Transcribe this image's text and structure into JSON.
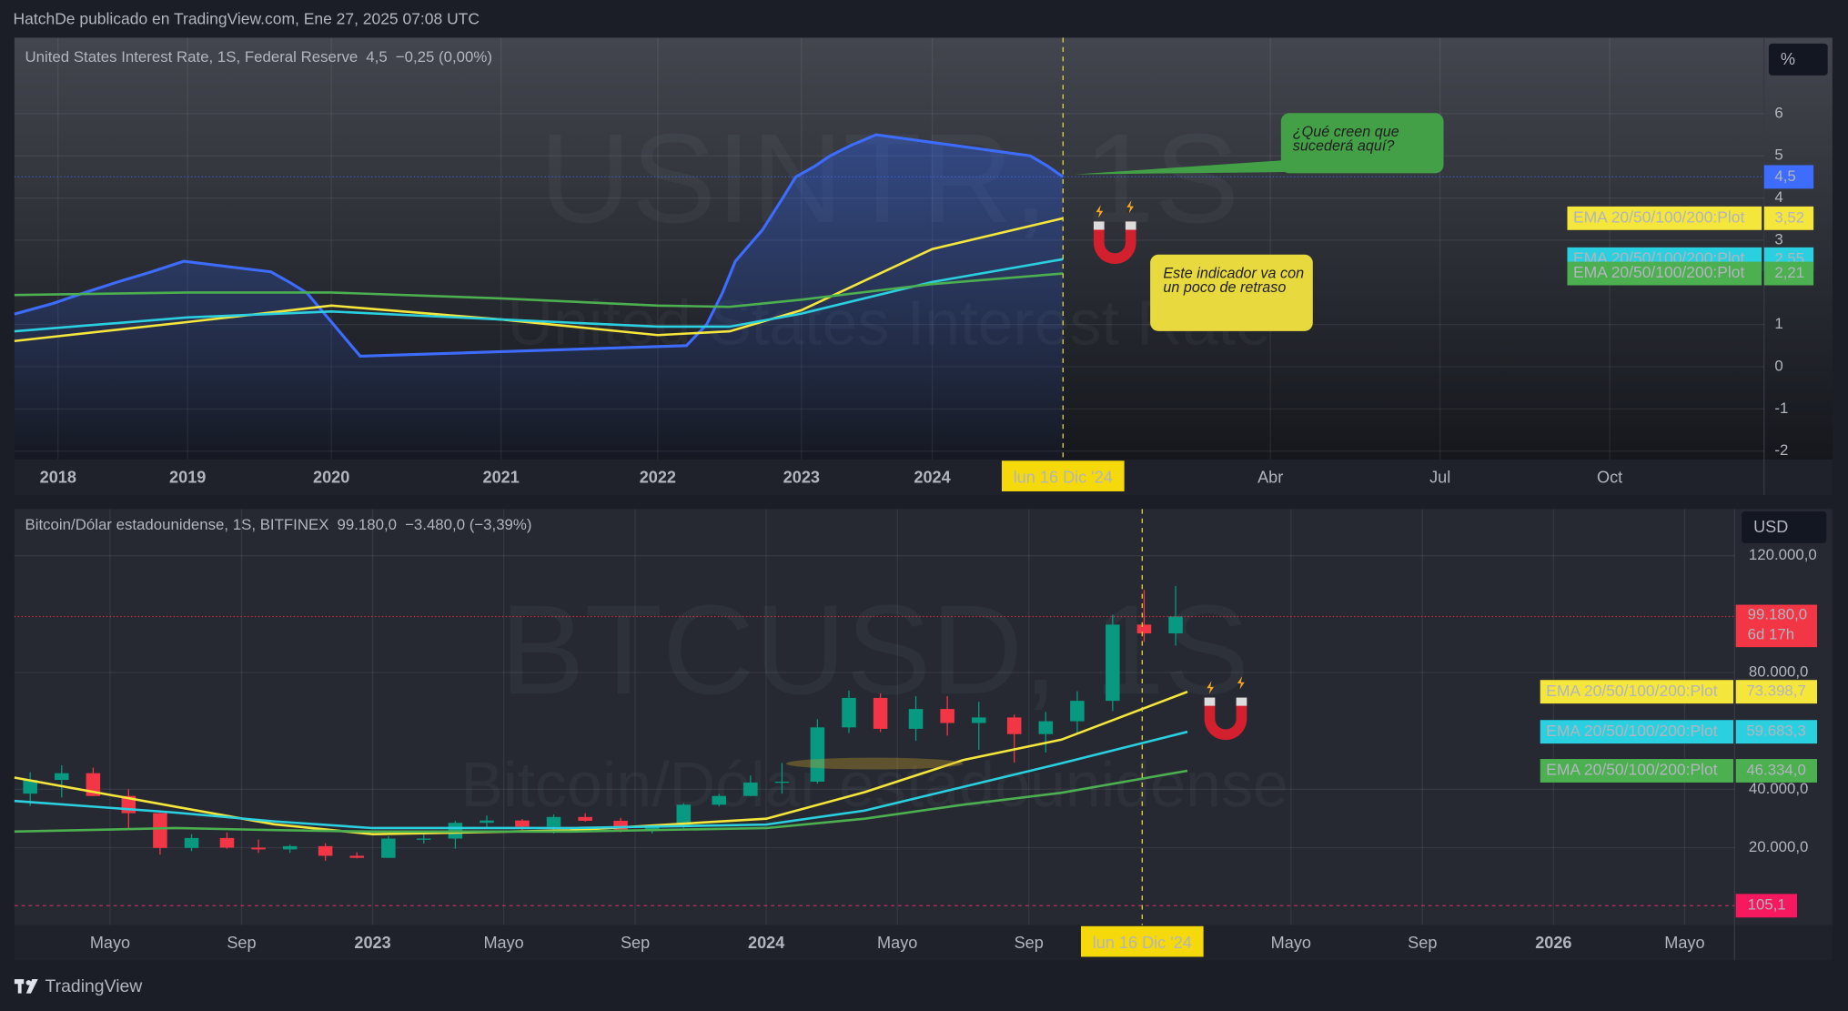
{
  "header": {
    "publisher": "HatchDe publicado en TradingView.com, Ene 27, 2025 07:08 UTC"
  },
  "footer": {
    "brand": "TradingView"
  },
  "chart_data": [
    {
      "type": "line",
      "title": "United States Interest Rate, 1S, Federal Reserve",
      "change": "−0,25 (0,00%)",
      "watermark": "USINTR, 1S",
      "unit": "%",
      "crosshair": {
        "value": 2024.96,
        "label": "lun 16 Dic '24"
      },
      "annotations": [
        "¿Qué creen que sucederá aquí?",
        "Este indicador va con un poco de retraso"
      ],
      "xlim": [
        2017.66,
        2025.98
      ],
      "xticks": [
        2018,
        2019,
        2020,
        2021,
        2022,
        2023,
        2024,
        {
          "value": 2025.25,
          "label": "Abr"
        },
        {
          "value": 2025.5,
          "label": "Jul"
        },
        {
          "value": 2025.75,
          "label": "Oct"
        }
      ],
      "ylim": [
        -2.2,
        7.8
      ],
      "yticks": [
        -2,
        -1,
        0,
        1,
        3,
        4,
        5,
        6
      ],
      "grid": true,
      "series": [
        {
          "name": "United States Interest Rate",
          "color": "#3d6cff",
          "area": true,
          "price_label": "4,5",
          "x": [
            2017.66,
            2017.96,
            2018.2,
            2018.45,
            2018.72,
            2018.97,
            2019.58,
            2019.71,
            2019.83,
            2020.17,
            2022.2,
            2022.34,
            2022.45,
            2022.54,
            2022.73,
            2022.87,
            2022.96,
            2023.1,
            2023.22,
            2023.38,
            2023.57,
            2024.72,
            2024.85,
            2024.96
          ],
          "values": [
            1.25,
            1.5,
            1.75,
            2.0,
            2.25,
            2.5,
            2.25,
            2.0,
            1.75,
            0.25,
            0.5,
            1.0,
            1.75,
            2.5,
            3.25,
            4.0,
            4.5,
            4.75,
            5.0,
            5.25,
            5.5,
            5.0,
            4.75,
            4.5
          ]
        },
        {
          "name": "EMA 20/50/100/200:Plot",
          "color": "#f5e63c",
          "price_label": "3,52",
          "x": [
            2017.66,
            2019,
            2020,
            2021,
            2022,
            2022.5,
            2023,
            2024,
            2024.96
          ],
          "values": [
            0.61,
            1.06,
            1.45,
            1.12,
            0.75,
            0.84,
            1.34,
            2.79,
            3.52
          ]
        },
        {
          "name": "EMA 20/50/100/200:Plot",
          "color": "#2bd0e0",
          "price_label": "2,55",
          "x": [
            2017.66,
            2019,
            2020,
            2021,
            2022,
            2022.5,
            2023,
            2024,
            2024.96
          ],
          "values": [
            0.84,
            1.17,
            1.31,
            1.12,
            0.95,
            0.95,
            1.26,
            2.01,
            2.55
          ]
        },
        {
          "name": "EMA 20/50/100/200:Plot",
          "color": "#4caf50",
          "price_label": "2,21",
          "x": [
            2017.66,
            2019,
            2020,
            2021,
            2022,
            2022.5,
            2023,
            2024,
            2024.96
          ],
          "values": [
            1.7,
            1.76,
            1.76,
            1.62,
            1.45,
            1.42,
            1.59,
            1.96,
            2.21
          ]
        }
      ]
    },
    {
      "type": "candlestick",
      "title": "Bitcoin/Dólar estadounidense, 1S, BITFINEX",
      "name": "Bitcoin/Dólar estadounidense",
      "last_price_label": "99.180,0",
      "change": "−3.480,0 (−3,39%)",
      "countdown": "6d 17h",
      "watermark": "BTCUSD, 1S",
      "unit": "USD",
      "crosshair": {
        "value": 2024.955,
        "label": "lun 16 Dic '24"
      },
      "marker_level": {
        "value": 105.1,
        "label": "105,1"
      },
      "up_color": "#089981",
      "down_color": "#f23645",
      "xlim": [
        2022.09,
        2026.46
      ],
      "xticks": [
        {
          "value": 2022.333,
          "label": "Mayo"
        },
        {
          "value": 2022.667,
          "label": "Sep"
        },
        2023,
        {
          "value": 2023.333,
          "label": "Mayo"
        },
        {
          "value": 2023.667,
          "label": "Sep"
        },
        2024,
        {
          "value": 2024.333,
          "label": "Mayo"
        },
        {
          "value": 2024.667,
          "label": "Sep"
        },
        {
          "value": 2025.333,
          "label": "Mayo"
        },
        {
          "value": 2025.667,
          "label": "Sep"
        },
        2026,
        {
          "value": 2026.333,
          "label": "Mayo"
        }
      ],
      "ylim": [
        -6500,
        136000
      ],
      "yticks": [
        {
          "value": 20000,
          "label": "20.000,0"
        },
        {
          "value": 40000,
          "label": "40.000,0"
        },
        {
          "value": 80000,
          "label": "80.000,0"
        },
        {
          "value": 120000,
          "label": "120.000,0"
        }
      ],
      "grid": true,
      "x": [
        2022.13,
        2022.21,
        2022.29,
        2022.38,
        2022.46,
        2022.54,
        2022.63,
        2022.71,
        2022.79,
        2022.88,
        2022.96,
        2023.04,
        2023.13,
        2023.21,
        2023.29,
        2023.38,
        2023.46,
        2023.54,
        2023.63,
        2023.71,
        2023.79,
        2023.88,
        2023.96,
        2024.04,
        2024.13,
        2024.21,
        2024.29,
        2024.38,
        2024.46,
        2024.54,
        2024.63,
        2024.71,
        2024.79,
        2024.88,
        2024.96,
        2025.04
      ],
      "open": [
        38500,
        43200,
        45500,
        37700,
        31800,
        19900,
        23300,
        20000,
        19400,
        20500,
        17200,
        16500,
        23100,
        23100,
        28500,
        29300,
        27200,
        30500,
        29200,
        26000,
        27000,
        34700,
        37700,
        42300,
        42600,
        61200,
        71300,
        60700,
        67500,
        62700,
        64600,
        58900,
        63300,
        70300,
        96400,
        93400
      ],
      "high": [
        45800,
        48200,
        47400,
        40000,
        31900,
        24600,
        25200,
        22800,
        21000,
        21500,
        18400,
        23900,
        25200,
        29200,
        31000,
        29800,
        31400,
        31800,
        30200,
        27500,
        35200,
        38400,
        44700,
        49000,
        64000,
        73800,
        72800,
        71900,
        71900,
        70000,
        65600,
        66500,
        73600,
        99800,
        108300,
        109600
      ],
      "low": [
        34300,
        37200,
        37600,
        26700,
        17600,
        18800,
        19600,
        18200,
        18200,
        15500,
        16300,
        16500,
        21400,
        19600,
        26900,
        25800,
        24800,
        28900,
        25200,
        24900,
        26600,
        34100,
        37600,
        38500,
        41900,
        59300,
        59600,
        56600,
        58400,
        53500,
        49100,
        52600,
        58900,
        66800,
        90500,
        89200
      ],
      "close": [
        43200,
        45500,
        37700,
        31800,
        19900,
        23300,
        20000,
        19400,
        20500,
        17200,
        16500,
        23100,
        23100,
        28500,
        29300,
        27200,
        30500,
        29200,
        26000,
        27000,
        34700,
        37700,
        42300,
        42600,
        61200,
        71300,
        60700,
        67500,
        62700,
        64600,
        58900,
        63300,
        70300,
        96400,
        93400,
        99180
      ],
      "series": [
        {
          "name": "EMA 20/50/100/200:Plot",
          "color": "#f5e63c",
          "price_label": "73.398,7",
          "x": [
            2022.09,
            2022.5,
            2022.75,
            2023.0,
            2023.5,
            2024.0,
            2024.25,
            2024.5,
            2024.75,
            2025.07
          ],
          "values": [
            44000,
            34000,
            28000,
            24600,
            25900,
            29900,
            39000,
            50000,
            57000,
            73398.7
          ]
        },
        {
          "name": "EMA 20/50/100/200:Plot",
          "color": "#2bd0e0",
          "price_label": "59.683,3",
          "x": [
            2022.09,
            2022.5,
            2022.75,
            2023.0,
            2023.5,
            2024.0,
            2024.25,
            2024.5,
            2024.75,
            2025.07
          ],
          "values": [
            36000,
            32000,
            29000,
            26700,
            26700,
            27900,
            32700,
            40800,
            48900,
            59683.3
          ]
        },
        {
          "name": "EMA 20/50/100/200:Plot",
          "color": "#4caf50",
          "price_label": "46.334,0",
          "x": [
            2022.09,
            2022.5,
            2022.75,
            2023.0,
            2023.5,
            2024.0,
            2024.25,
            2024.5,
            2024.75,
            2025.07
          ],
          "values": [
            25500,
            26700,
            26000,
            25500,
            25500,
            26700,
            29900,
            34700,
            38800,
            46334
          ]
        }
      ]
    }
  ]
}
